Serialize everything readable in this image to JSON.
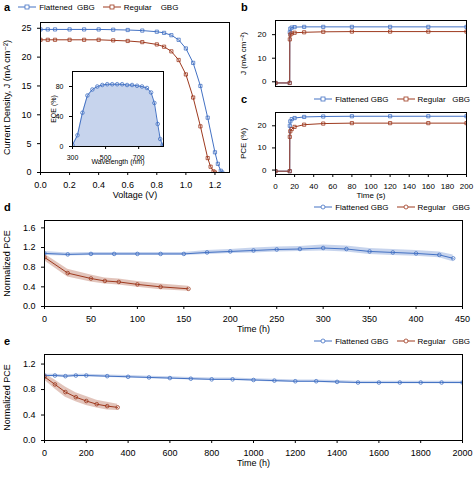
{
  "chart_data": [
    {
      "type": "line",
      "title": "a",
      "xlabel": "Voltage (V)",
      "ylabel": "Current Density, J (mA cm⁻²)",
      "xlim": [
        0.0,
        1.3
      ],
      "ylim": [
        0,
        26
      ],
      "xticks": [
        {
          "value": 0,
          "label": "0.0"
        },
        0.2,
        0.4,
        0.6,
        0.8,
        {
          "value": 1,
          "label": "1.0"
        },
        1.2
      ],
      "yticks": [
        0,
        5,
        10,
        15,
        20,
        25
      ],
      "grid": false,
      "legend": "upper left",
      "series": [
        {
          "name": "Flattened  GBG",
          "color": "#4472c4",
          "marker": "square",
          "x": [
            0.0,
            0.05,
            0.1,
            0.2,
            0.3,
            0.4,
            0.5,
            0.6,
            0.7,
            0.8,
            0.85,
            0.9,
            0.95,
            1.0,
            1.05,
            1.1,
            1.15,
            1.2,
            1.22,
            1.24,
            1.25
          ],
          "values": [
            24.8,
            24.8,
            24.8,
            24.8,
            24.8,
            24.8,
            24.75,
            24.7,
            24.6,
            24.4,
            24.2,
            23.8,
            23.0,
            21.5,
            19.0,
            15.0,
            9.5,
            3.5,
            1.5,
            0.3,
            0.0
          ]
        },
        {
          "name": "Regular    GBG",
          "color": "#9e3a1f",
          "marker": "square",
          "x": [
            0.0,
            0.05,
            0.1,
            0.2,
            0.3,
            0.4,
            0.5,
            0.6,
            0.7,
            0.8,
            0.85,
            0.9,
            0.95,
            1.0,
            1.05,
            1.1,
            1.15,
            1.17,
            1.19,
            1.2
          ],
          "values": [
            23.0,
            23.0,
            23.0,
            23.0,
            23.0,
            23.0,
            22.9,
            22.8,
            22.6,
            22.2,
            21.8,
            21.0,
            19.5,
            17.0,
            13.0,
            8.0,
            2.5,
            1.0,
            0.2,
            0.0
          ]
        }
      ]
    },
    {
      "type": "area",
      "xlabel": "Wavelength (nm)",
      "ylabel": "EQE (%)",
      "xlim": [
        300,
        850
      ],
      "ylim": [
        0,
        100
      ],
      "xticks": [
        300,
        500,
        700
      ],
      "yticks": [
        0,
        40,
        80
      ],
      "grid": false,
      "series": [
        {
          "color": "#4472c4",
          "marker": "circle",
          "x": [
            300,
            330,
            360,
            390,
            420,
            450,
            480,
            510,
            540,
            570,
            600,
            630,
            660,
            690,
            720,
            750,
            775,
            795,
            815,
            830,
            845,
            850
          ],
          "values": [
            2,
            15,
            45,
            68,
            76,
            80,
            82,
            83,
            83,
            83,
            83,
            82,
            82,
            81,
            80,
            78,
            72,
            58,
            30,
            10,
            2,
            0
          ]
        }
      ]
    },
    {
      "type": "line",
      "title": "b",
      "ylabel": "J (mA cm⁻²)",
      "xlim": [
        0,
        200
      ],
      "ylim": [
        -2,
        26
      ],
      "yticks": [
        0,
        10,
        20
      ],
      "tick_labels": "y",
      "grid": false,
      "series": [
        {
          "color": "#4472c4",
          "marker": "square",
          "x": [
            0,
            14.9,
            15.0,
            15.5,
            17,
            20,
            30,
            50,
            80,
            120,
            160,
            200
          ],
          "values": [
            -0.5,
            -0.5,
            21.0,
            22.5,
            23.0,
            23.2,
            23.3,
            23.3,
            23.3,
            23.3,
            23.3,
            23.3
          ]
        },
        {
          "color": "#9e3a1f",
          "marker": "square",
          "x": [
            0,
            14.9,
            15.0,
            15.5,
            17,
            20,
            30,
            50,
            80,
            120,
            160,
            200
          ],
          "values": [
            -0.5,
            -0.5,
            18.0,
            20.0,
            20.5,
            20.8,
            21.0,
            21.2,
            21.3,
            21.3,
            21.3,
            21.3
          ]
        }
      ]
    },
    {
      "type": "line",
      "title": "c",
      "xlabel": "Time (s)",
      "ylabel": "PCE (%)",
      "xlim": [
        0,
        200
      ],
      "ylim": [
        -2,
        26
      ],
      "xticks": [
        0,
        20,
        40,
        60,
        80,
        100,
        120,
        140,
        160,
        180,
        200
      ],
      "yticks": [
        0,
        10,
        20
      ],
      "grid": false,
      "legend": "center right",
      "series": [
        {
          "name": "Flattened GBG",
          "color": "#4472c4",
          "marker": "square",
          "x": [
            0,
            14.9,
            15.0,
            15.5,
            17,
            20,
            30,
            50,
            80,
            120,
            160,
            200
          ],
          "values": [
            -0.5,
            -0.5,
            20.0,
            22.0,
            23.0,
            23.5,
            24.0,
            24.2,
            24.3,
            24.3,
            24.3,
            24.3
          ]
        },
        {
          "name": "Regular   GBG",
          "color": "#9e3a1f",
          "marker": "square",
          "x": [
            0,
            14.9,
            15.0,
            15.5,
            17,
            20,
            30,
            50,
            80,
            120,
            160,
            200
          ],
          "values": [
            -0.5,
            -0.5,
            15.0,
            17.5,
            18.5,
            19.5,
            20.5,
            21.0,
            21.2,
            21.2,
            21.2,
            21.2
          ]
        }
      ]
    },
    {
      "type": "line",
      "title": "d",
      "xlabel": "Time (h)",
      "ylabel": "Normalized PCE",
      "xlim": [
        0,
        450
      ],
      "ylim": [
        0.0,
        1.75
      ],
      "xticks": [
        0,
        50,
        100,
        150,
        200,
        250,
        300,
        350,
        400,
        450
      ],
      "yticks": [
        {
          "value": 0,
          "label": "0.0"
        },
        0.4,
        0.8,
        1.2,
        1.6
      ],
      "grid": false,
      "legend": "center right",
      "series": [
        {
          "name": "Flattened GBG",
          "color": "#4472c4",
          "marker": "circle",
          "x": [
            0,
            25,
            50,
            75,
            100,
            125,
            150,
            175,
            200,
            225,
            250,
            275,
            300,
            325,
            350,
            375,
            400,
            425,
            440
          ],
          "values": [
            1.08,
            1.06,
            1.07,
            1.07,
            1.07,
            1.07,
            1.07,
            1.1,
            1.12,
            1.14,
            1.16,
            1.17,
            1.19,
            1.17,
            1.12,
            1.1,
            1.08,
            1.05,
            0.98
          ],
          "err": [
            0.04,
            0.03,
            0.03,
            0.03,
            0.03,
            0.03,
            0.03,
            0.04,
            0.04,
            0.05,
            0.05,
            0.05,
            0.06,
            0.06,
            0.06,
            0.06,
            0.06,
            0.06,
            0.07
          ]
        },
        {
          "name": "Regular   GBG",
          "color": "#9e3a1f",
          "marker": "circle",
          "x": [
            0,
            25,
            50,
            65,
            80,
            100,
            125,
            155
          ],
          "values": [
            1.0,
            0.68,
            0.57,
            0.52,
            0.5,
            0.45,
            0.4,
            0.36
          ],
          "err": [
            0.07,
            0.08,
            0.07,
            0.06,
            0.06,
            0.06,
            0.06,
            0.05
          ]
        }
      ]
    },
    {
      "type": "line",
      "title": "e",
      "xlabel": "Time (h)",
      "ylabel": "Normalized PCE",
      "xlim": [
        0,
        2000
      ],
      "ylim": [
        0.0,
        1.35
      ],
      "xticks": [
        0,
        200,
        400,
        600,
        800,
        1000,
        1200,
        1400,
        1600,
        1800,
        2000
      ],
      "yticks": [
        {
          "value": 0,
          "label": "0.0"
        },
        0.4,
        0.8,
        1.2
      ],
      "grid": false,
      "legend": "center right",
      "series": [
        {
          "name": "Flattened GBG",
          "color": "#4472c4",
          "marker": "circle",
          "x": [
            0,
            50,
            100,
            150,
            200,
            300,
            400,
            500,
            600,
            700,
            800,
            900,
            1000,
            1100,
            1200,
            1300,
            1400,
            1500,
            1600,
            1700,
            1800,
            1900,
            2000
          ],
          "values": [
            1.02,
            1.02,
            1.01,
            1.02,
            1.02,
            1.01,
            1.0,
            0.99,
            0.98,
            0.97,
            0.96,
            0.96,
            0.95,
            0.94,
            0.93,
            0.93,
            0.92,
            0.91,
            0.91,
            0.91,
            0.91,
            0.91,
            0.91
          ],
          "err": [
            0.02,
            0.02,
            0.02,
            0.02,
            0.02,
            0.02,
            0.02,
            0.02,
            0.02,
            0.02,
            0.02,
            0.02,
            0.02,
            0.02,
            0.02,
            0.02,
            0.02,
            0.02,
            0.02,
            0.02,
            0.02,
            0.02,
            0.02
          ]
        },
        {
          "name": "Regular   GBG",
          "color": "#9e3a1f",
          "marker": "circle",
          "x": [
            0,
            50,
            100,
            150,
            200,
            250,
            300,
            350
          ],
          "values": [
            1.0,
            0.88,
            0.76,
            0.68,
            0.62,
            0.57,
            0.54,
            0.52
          ],
          "err": [
            0.05,
            0.07,
            0.08,
            0.07,
            0.07,
            0.06,
            0.06,
            0.05
          ]
        }
      ]
    }
  ]
}
